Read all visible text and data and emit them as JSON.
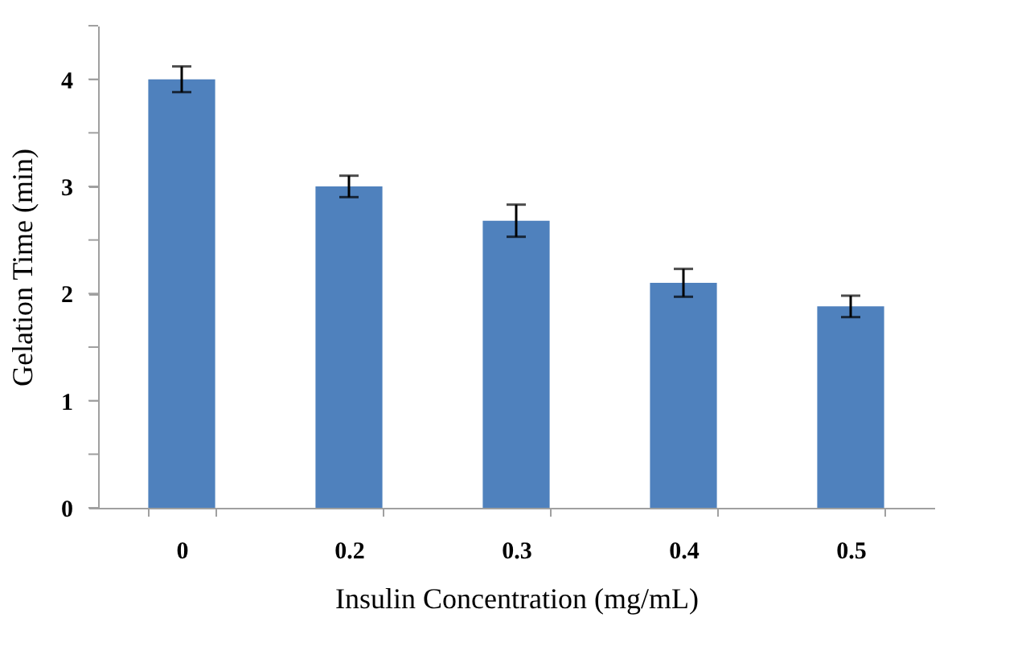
{
  "chart_data": {
    "type": "bar",
    "xlabel": "Insulin Concentration (mg/mL)",
    "ylabel": "Gelation Time (min)",
    "categories": [
      "0",
      "0.2",
      "0.3",
      "0.4",
      "0.5"
    ],
    "values": [
      4.0,
      3.0,
      2.68,
      2.1,
      1.88
    ],
    "errors": [
      0.12,
      0.1,
      0.15,
      0.13,
      0.1
    ],
    "color": "#4f81bd",
    "ylim": [
      0,
      4.5
    ],
    "yticks": [
      0,
      {
        "value": 0.5,
        "label": null
      },
      1,
      {
        "value": 1.5,
        "label": null
      },
      2,
      {
        "value": 2.5,
        "label": null
      },
      3,
      {
        "value": 3.5,
        "label": null
      },
      4,
      {
        "value": 4.5,
        "label": null
      }
    ],
    "grid": false
  }
}
